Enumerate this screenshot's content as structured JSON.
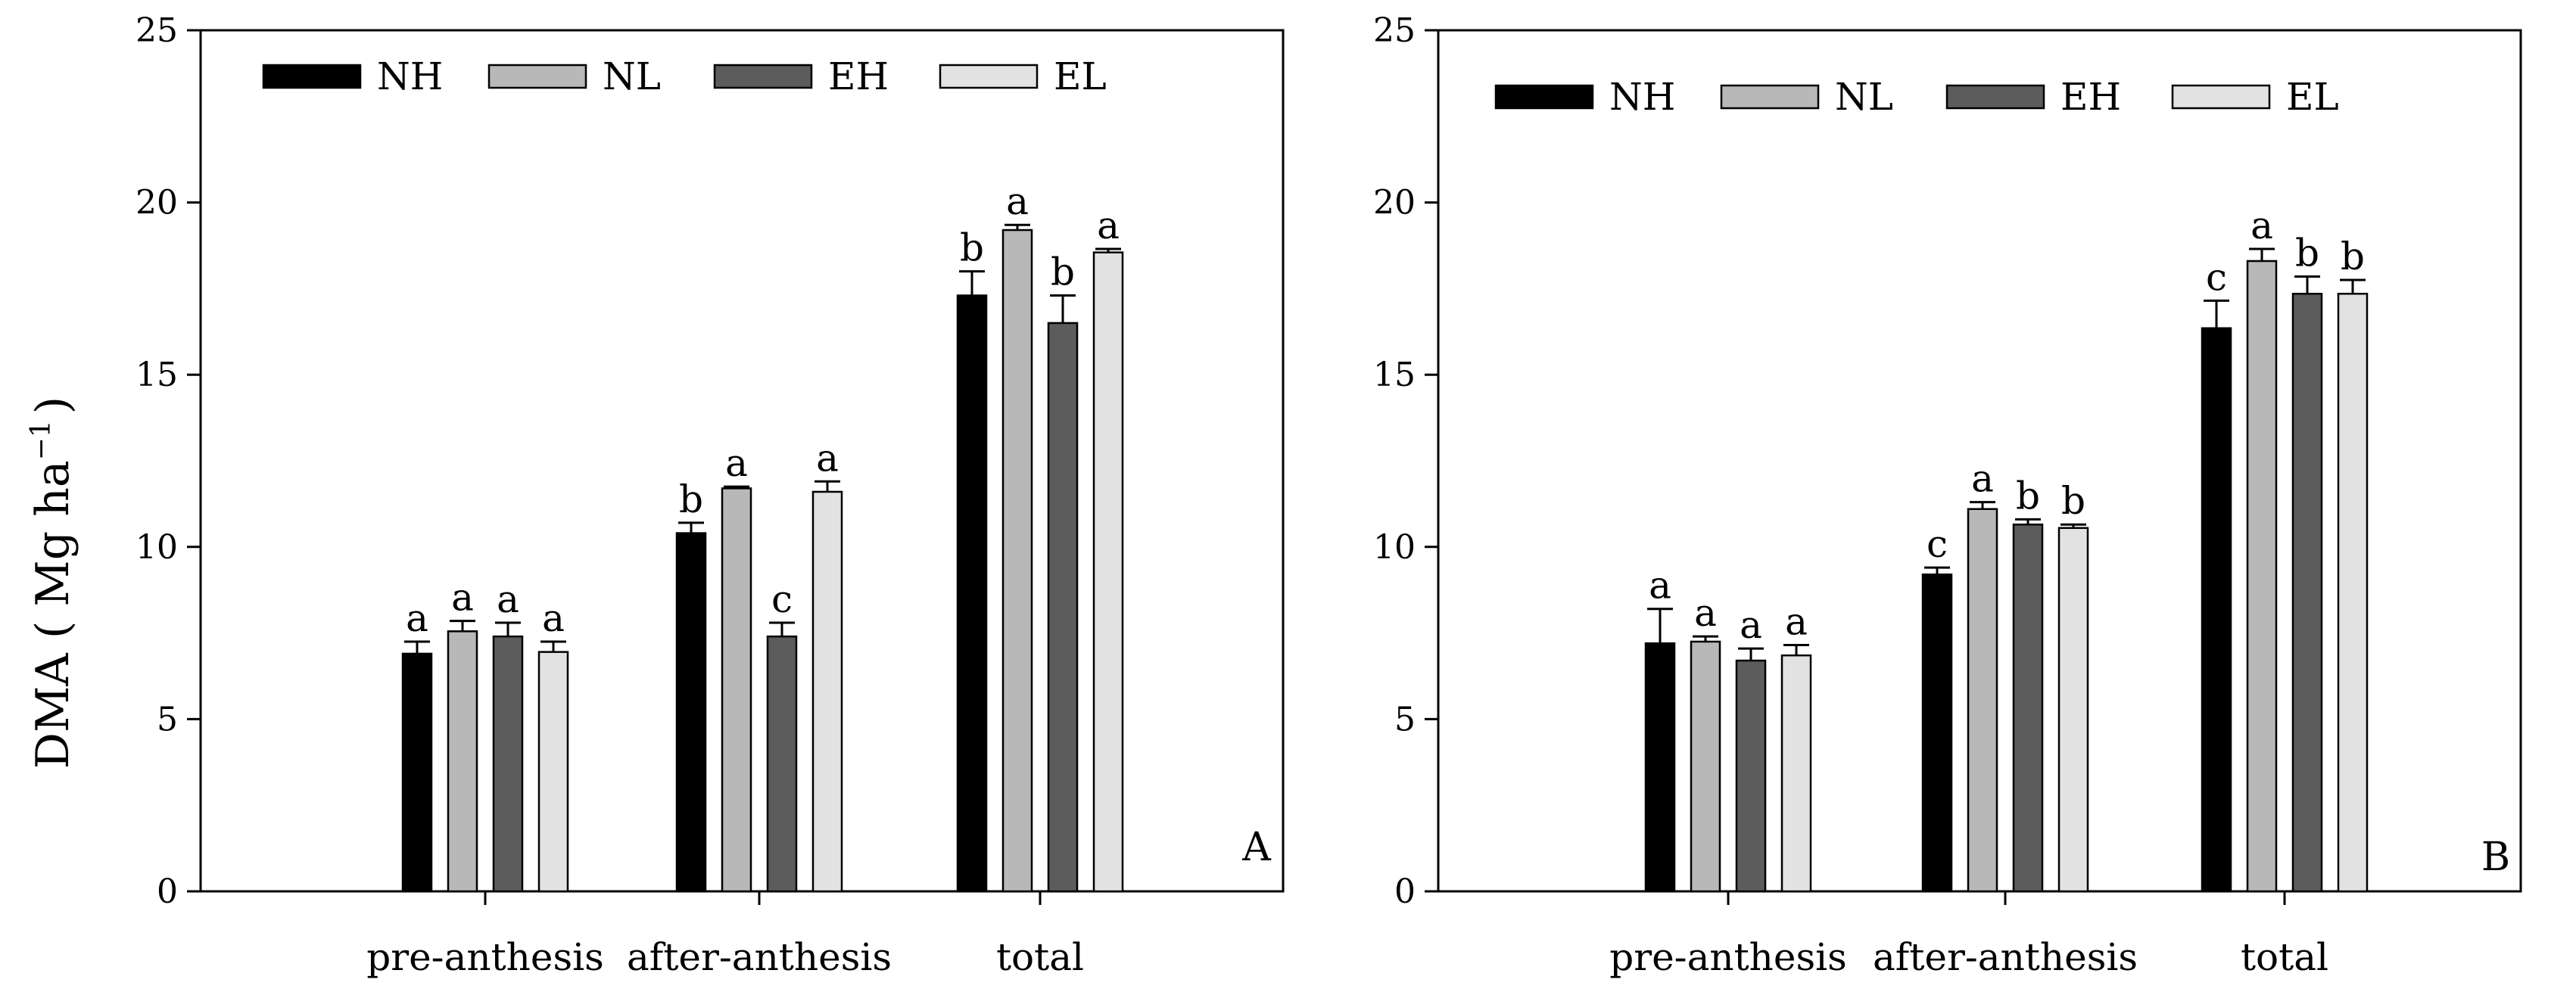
{
  "y_axis_label": {
    "main": "DMA ( Mg ha",
    "superscript": "−1",
    "close": ")"
  },
  "colors": {
    "NH": "#000000",
    "NL": "#b8b8b8",
    "EH": "#5c5c5c",
    "EL": "#e2e2e2"
  },
  "chart_data": [
    {
      "type": "bar",
      "panel": "A",
      "title": "",
      "xlabel": "",
      "ylabel": "DMA ( Mg ha−1 )",
      "ylim": [
        0,
        25
      ],
      "yticks": [
        0,
        5,
        10,
        15,
        20,
        25
      ],
      "legend_position": "top-left",
      "categories": [
        "pre-anthesis",
        "after-anthesis",
        "total"
      ],
      "series": [
        {
          "name": "NH",
          "values": [
            6.9,
            10.4,
            17.3
          ],
          "errors": [
            0.35,
            0.3,
            0.7
          ],
          "letters": [
            "a",
            "b",
            "b"
          ]
        },
        {
          "name": "NL",
          "values": [
            7.55,
            11.7,
            19.2
          ],
          "errors": [
            0.3,
            0.05,
            0.15
          ],
          "letters": [
            "a",
            "a",
            "a"
          ]
        },
        {
          "name": "EH",
          "values": [
            7.4,
            7.4,
            16.5
          ],
          "errors": [
            0.4,
            0.4,
            0.8
          ],
          "letters": [
            "a",
            "c",
            "b"
          ]
        },
        {
          "name": "EL",
          "values": [
            6.95,
            11.6,
            18.55
          ],
          "errors": [
            0.3,
            0.3,
            0.1
          ],
          "letters": [
            "a",
            "a",
            "a"
          ]
        }
      ]
    },
    {
      "type": "bar",
      "panel": "B",
      "title": "",
      "xlabel": "",
      "ylabel": "",
      "ylim": [
        0,
        25
      ],
      "yticks": [
        0,
        5,
        10,
        15,
        20,
        25
      ],
      "legend_position": "top-left",
      "categories": [
        "pre-anthesis",
        "after-anthesis",
        "total"
      ],
      "series": [
        {
          "name": "NH",
          "values": [
            7.2,
            9.2,
            16.35
          ],
          "errors": [
            1.0,
            0.2,
            0.8
          ],
          "letters": [
            "a",
            "c",
            "c"
          ]
        },
        {
          "name": "NL",
          "values": [
            7.25,
            11.1,
            18.3
          ],
          "errors": [
            0.15,
            0.2,
            0.35
          ],
          "letters": [
            "a",
            "a",
            "a"
          ]
        },
        {
          "name": "EH",
          "values": [
            6.7,
            10.65,
            17.35
          ],
          "errors": [
            0.35,
            0.15,
            0.5
          ],
          "letters": [
            "a",
            "b",
            "b"
          ]
        },
        {
          "name": "EL",
          "values": [
            6.85,
            10.55,
            17.35
          ],
          "errors": [
            0.3,
            0.1,
            0.4
          ],
          "letters": [
            "a",
            "b",
            "b"
          ]
        }
      ]
    }
  ]
}
